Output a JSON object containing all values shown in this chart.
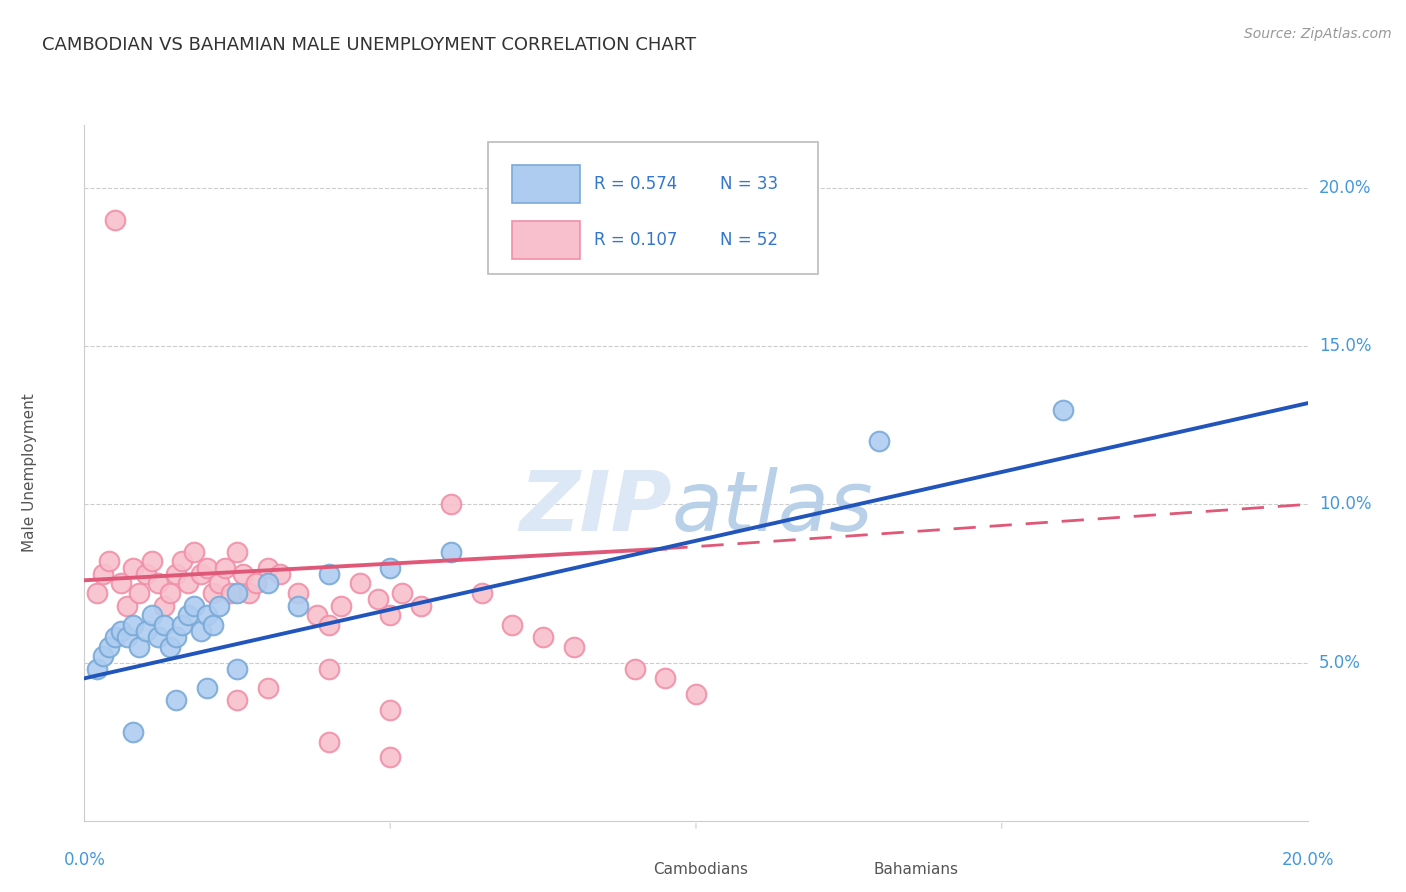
{
  "title": "CAMBODIAN VS BAHAMIAN MALE UNEMPLOYMENT CORRELATION CHART",
  "source": "Source: ZipAtlas.com",
  "ylabel": "Male Unemployment",
  "legend_cambodian": "Cambodians",
  "legend_bahamian": "Bahamians",
  "legend_r_cambodian": "R = 0.574",
  "legend_n_cambodian": "N = 33",
  "legend_r_bahamian": "R = 0.107",
  "legend_n_bahamian": "N = 52",
  "color_cambodian_fill": "#aeccf0",
  "color_cambodian_edge": "#7aaad8",
  "color_bahamian_fill": "#f8c0cc",
  "color_bahamian_edge": "#f090a8",
  "color_line_cambodian": "#2255bb",
  "color_line_bahamian": "#e05878",
  "color_axis_labels": "#4499dd",
  "color_legend_text": "#3377cc",
  "xlim": [
    0.0,
    0.2
  ],
  "ylim": [
    0.0,
    0.22
  ],
  "yticks": [
    0.05,
    0.1,
    0.15,
    0.2
  ],
  "ytick_labels": [
    "5.0%",
    "10.0%",
    "15.0%",
    "20.0%"
  ],
  "cambodian_x": [
    0.002,
    0.003,
    0.004,
    0.005,
    0.006,
    0.007,
    0.008,
    0.009,
    0.01,
    0.011,
    0.012,
    0.013,
    0.014,
    0.015,
    0.016,
    0.017,
    0.018,
    0.019,
    0.02,
    0.021,
    0.022,
    0.025,
    0.03,
    0.035,
    0.04,
    0.05,
    0.06,
    0.025,
    0.02,
    0.015,
    0.13,
    0.16,
    0.008
  ],
  "cambodian_y": [
    0.048,
    0.052,
    0.055,
    0.058,
    0.06,
    0.058,
    0.062,
    0.055,
    0.06,
    0.065,
    0.058,
    0.062,
    0.055,
    0.058,
    0.062,
    0.065,
    0.068,
    0.06,
    0.065,
    0.062,
    0.068,
    0.072,
    0.075,
    0.068,
    0.078,
    0.08,
    0.085,
    0.048,
    0.042,
    0.038,
    0.12,
    0.13,
    0.028
  ],
  "bahamian_x": [
    0.002,
    0.003,
    0.004,
    0.005,
    0.006,
    0.007,
    0.008,
    0.009,
    0.01,
    0.011,
    0.012,
    0.013,
    0.014,
    0.015,
    0.016,
    0.017,
    0.018,
    0.019,
    0.02,
    0.021,
    0.022,
    0.023,
    0.024,
    0.025,
    0.026,
    0.027,
    0.028,
    0.03,
    0.032,
    0.035,
    0.038,
    0.04,
    0.042,
    0.045,
    0.048,
    0.05,
    0.052,
    0.055,
    0.06,
    0.065,
    0.07,
    0.075,
    0.08,
    0.09,
    0.095,
    0.1,
    0.04,
    0.03,
    0.025,
    0.05,
    0.04,
    0.05
  ],
  "bahamian_y": [
    0.072,
    0.078,
    0.082,
    0.19,
    0.075,
    0.068,
    0.08,
    0.072,
    0.078,
    0.082,
    0.075,
    0.068,
    0.072,
    0.078,
    0.082,
    0.075,
    0.085,
    0.078,
    0.08,
    0.072,
    0.075,
    0.08,
    0.072,
    0.085,
    0.078,
    0.072,
    0.075,
    0.08,
    0.078,
    0.072,
    0.065,
    0.062,
    0.068,
    0.075,
    0.07,
    0.065,
    0.072,
    0.068,
    0.1,
    0.072,
    0.062,
    0.058,
    0.055,
    0.048,
    0.045,
    0.04,
    0.048,
    0.042,
    0.038,
    0.035,
    0.025,
    0.02
  ],
  "cam_line_x0": 0.0,
  "cam_line_y0": 0.045,
  "cam_line_x1": 0.2,
  "cam_line_y1": 0.132,
  "bah_line_solid_x0": 0.0,
  "bah_line_solid_y0": 0.076,
  "bah_line_solid_x1": 0.095,
  "bah_line_solid_y1": 0.086,
  "bah_line_dash_x0": 0.095,
  "bah_line_dash_y0": 0.086,
  "bah_line_dash_x1": 0.2,
  "bah_line_dash_y1": 0.1,
  "watermark_zip": "ZIP",
  "watermark_atlas": "atlas",
  "background_color": "#ffffff",
  "grid_color": "#cccccc",
  "spine_color": "#cccccc"
}
